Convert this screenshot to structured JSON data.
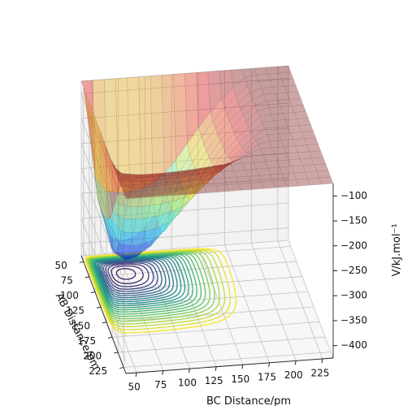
{
  "chart_data": {
    "type": "surface",
    "title": "",
    "xlabel": "AB Distance/pm",
    "ylabel": "BC Distance/pm",
    "zlabel": "V/kJ.mol⁻¹",
    "xticks": [
      "50",
      "75",
      "100",
      "125",
      "150",
      "175",
      "200",
      "225"
    ],
    "yticks": [
      "50",
      "75",
      "100",
      "125",
      "150",
      "175",
      "200",
      "225"
    ],
    "zticks": [
      "-100",
      "-150",
      "-200",
      "-250",
      "-300",
      "-350",
      "-400"
    ],
    "xlim": [
      40,
      235
    ],
    "ylim": [
      40,
      235
    ],
    "zlim": [
      -425,
      -75
    ],
    "grid": true,
    "colormap_surface": "jet",
    "colormap_contours": "viridis",
    "colors": {
      "pane": "#f2f2f2",
      "pane_edge": "#cfcfcf",
      "grid": "#bbbbbb",
      "surface_low": "#1a10d8",
      "surface_high": "#c8302a"
    }
  }
}
